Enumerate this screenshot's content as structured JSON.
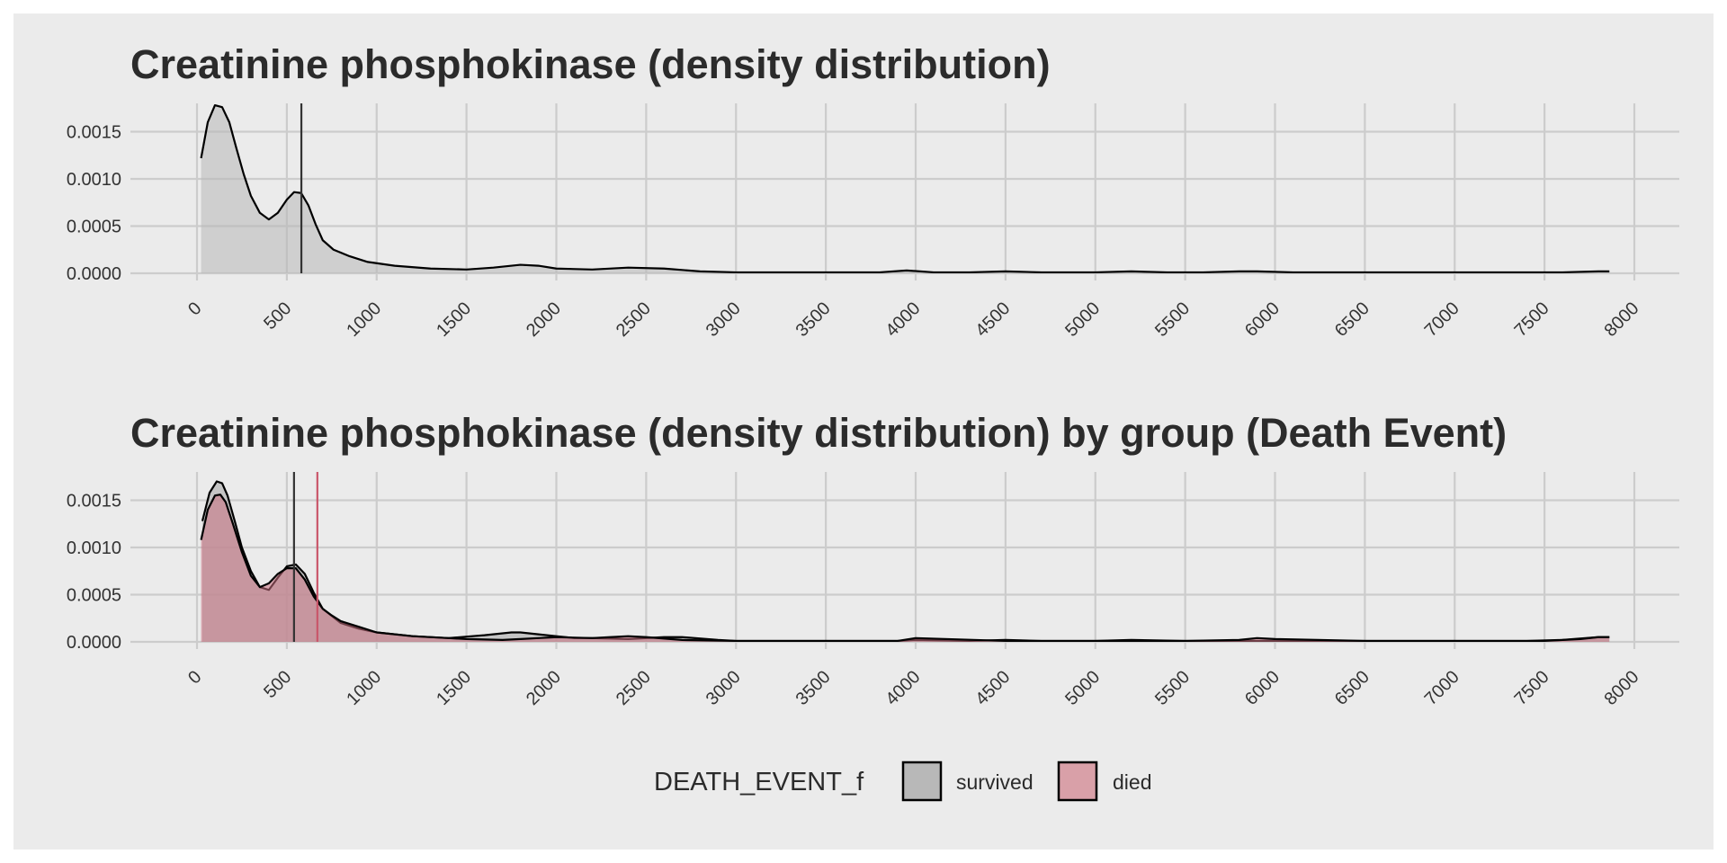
{
  "colors": {
    "background": "#ebebeb",
    "grid": "#cccccc",
    "survived_fill": "#b8b8b8",
    "died_fill": "#c9707f",
    "died_line": "#c9566a",
    "outline": "#000000"
  },
  "chart_data": [
    {
      "type": "area",
      "title": "Creatinine phosphokinase (density distribution)",
      "xlabel": "",
      "ylabel": "",
      "xlim": [
        0,
        8000
      ],
      "ylim": [
        0,
        0.0018
      ],
      "x_ticks": [
        "0",
        "500",
        "1000",
        "1500",
        "2000",
        "2500",
        "3000",
        "3500",
        "4000",
        "4500",
        "5000",
        "5500",
        "6000",
        "6500",
        "7000",
        "7500",
        "8000"
      ],
      "y_ticks": [
        "0.0000",
        "0.0005",
        "0.0010",
        "0.0015"
      ],
      "grid": true,
      "mean_line": 581,
      "series": [
        {
          "fill": "#b8b8b8",
          "fill_opacity": 0.55,
          "x": [
            23,
            60,
            100,
            140,
            180,
            220,
            260,
            300,
            350,
            400,
            450,
            500,
            540,
            580,
            620,
            660,
            700,
            760,
            850,
            950,
            1100,
            1300,
            1500,
            1650,
            1800,
            1900,
            2000,
            2200,
            2400,
            2600,
            2800,
            3000,
            3300,
            3600,
            3800,
            3950,
            4100,
            4300,
            4500,
            4700,
            5000,
            5200,
            5400,
            5600,
            5800,
            5900,
            6100,
            6500,
            7000,
            7400,
            7600,
            7800,
            7861
          ],
          "y": [
            0.00122,
            0.0016,
            0.00178,
            0.00176,
            0.0016,
            0.00132,
            0.00105,
            0.00082,
            0.00064,
            0.00057,
            0.00064,
            0.00078,
            0.00086,
            0.00085,
            0.00072,
            0.00052,
            0.00035,
            0.00025,
            0.00018,
            0.00012,
            8e-05,
            5e-05,
            4e-05,
            6e-05,
            9e-05,
            8e-05,
            5e-05,
            4e-05,
            6e-05,
            5e-05,
            2e-05,
            1e-05,
            1e-05,
            1e-05,
            1e-05,
            3e-05,
            1e-05,
            1e-05,
            2e-05,
            1e-05,
            1e-05,
            2e-05,
            1e-05,
            1e-05,
            2e-05,
            2e-05,
            1e-05,
            1e-05,
            1e-05,
            1e-05,
            1e-05,
            2e-05,
            2e-05
          ]
        }
      ]
    },
    {
      "type": "area",
      "title": "Creatinine phosphokinase (density distribution) by group (Death Event)",
      "xlabel": "",
      "ylabel": "",
      "xlim": [
        0,
        8000
      ],
      "ylim": [
        0,
        0.0018
      ],
      "x_ticks": [
        "0",
        "500",
        "1000",
        "1500",
        "2000",
        "2500",
        "3000",
        "3500",
        "4000",
        "4500",
        "5000",
        "5500",
        "6000",
        "6500",
        "7000",
        "7500",
        "8000"
      ],
      "y_ticks": [
        "0.0000",
        "0.0005",
        "0.0010",
        "0.0015"
      ],
      "grid": true,
      "legend": {
        "title": "DEATH_EVENT_f",
        "position": "bottom",
        "entries": [
          {
            "label": "survived",
            "color": "#b8b8b8"
          },
          {
            "label": "died",
            "color": "#d9a0a8"
          }
        ]
      },
      "mean_lines": [
        {
          "x": 540,
          "color": "#333333"
        },
        {
          "x": 670,
          "color": "#c9566a"
        }
      ],
      "series": [
        {
          "name": "survived",
          "fill": "#b8b8b8",
          "fill_opacity": 0.75,
          "x": [
            30,
            70,
            110,
            140,
            170,
            210,
            250,
            300,
            350,
            400,
            450,
            500,
            550,
            600,
            650,
            700,
            800,
            900,
            1000,
            1200,
            1400,
            1600,
            1750,
            1800,
            1900,
            2000,
            2100,
            2200,
            2400,
            2600,
            2700,
            2900,
            3000,
            3500,
            3900,
            4000,
            4300,
            4500,
            4700,
            5000,
            5200,
            5500,
            5800,
            5900,
            6100,
            6500,
            7000,
            7400,
            7600,
            7800,
            7861
          ],
          "y": [
            0.00128,
            0.00158,
            0.0017,
            0.00168,
            0.00155,
            0.00128,
            0.001,
            0.00075,
            0.00058,
            0.00055,
            0.00068,
            0.0008,
            0.00082,
            0.00072,
            0.00052,
            0.00035,
            0.0002,
            0.00014,
            0.0001,
            6e-05,
            4e-05,
            7e-05,
            0.0001,
            0.0001,
            8e-05,
            6e-05,
            4e-05,
            4e-05,
            3e-05,
            5e-05,
            5e-05,
            2e-05,
            1e-05,
            1e-05,
            1e-05,
            2e-05,
            1e-05,
            2e-05,
            1e-05,
            1e-05,
            2e-05,
            1e-05,
            1e-05,
            1e-05,
            1e-05,
            1e-05,
            1e-05,
            1e-05,
            2e-05,
            5e-05,
            5e-05
          ]
        },
        {
          "name": "died",
          "fill": "#c9707f",
          "fill_opacity": 0.55,
          "x": [
            23,
            60,
            100,
            130,
            160,
            200,
            250,
            300,
            350,
            400,
            450,
            500,
            550,
            600,
            650,
            700,
            750,
            800,
            900,
            1000,
            1200,
            1400,
            1500,
            1700,
            1800,
            1900,
            2000,
            2200,
            2300,
            2400,
            2500,
            2700,
            3000,
            3500,
            3900,
            4000,
            4500,
            5000,
            5500,
            5800,
            5900,
            6000,
            6500,
            7000,
            7500,
            7700,
            7800,
            7861
          ],
          "y": [
            0.00108,
            0.0014,
            0.00155,
            0.00156,
            0.00148,
            0.00125,
            0.00095,
            0.0007,
            0.00058,
            0.00062,
            0.00072,
            0.00078,
            0.00078,
            0.00066,
            0.00048,
            0.00035,
            0.00028,
            0.00022,
            0.00016,
            0.0001,
            6e-05,
            4e-05,
            3e-05,
            2e-05,
            3e-05,
            4e-05,
            5e-05,
            4e-05,
            5e-05,
            6e-05,
            5e-05,
            2e-05,
            1e-05,
            1e-05,
            1e-05,
            4e-05,
            1e-05,
            1e-05,
            1e-05,
            2e-05,
            4e-05,
            3e-05,
            1e-05,
            1e-05,
            1e-05,
            3e-05,
            5e-05,
            5e-05
          ]
        }
      ]
    }
  ]
}
